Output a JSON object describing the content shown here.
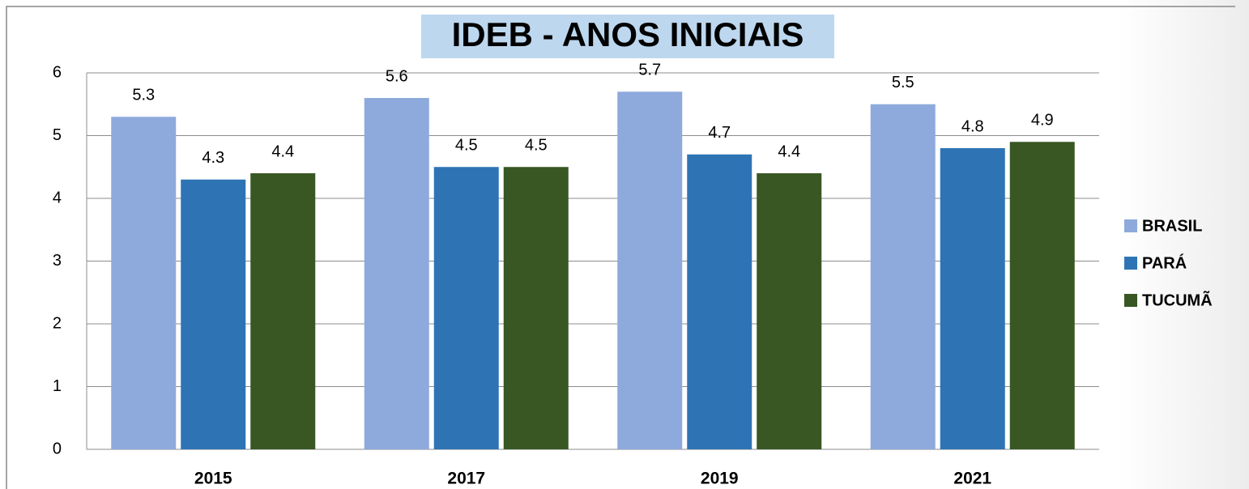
{
  "chart_data": {
    "type": "bar",
    "title": "IDEB - ANOS INICIAIS",
    "categories": [
      "2015",
      "2017",
      "2019",
      "2021"
    ],
    "series": [
      {
        "name": "BRASIL",
        "color": "#8eaadc",
        "values": [
          5.3,
          5.6,
          5.7,
          5.5
        ]
      },
      {
        "name": "PARÁ",
        "color": "#2e74b5",
        "values": [
          4.3,
          4.5,
          4.7,
          4.8
        ]
      },
      {
        "name": "TUCUMÃ",
        "color": "#385723",
        "values": [
          4.4,
          4.5,
          4.4,
          4.9
        ]
      }
    ],
    "ylim": [
      0,
      6
    ],
    "yticks": [
      0,
      1,
      2,
      3,
      4,
      5,
      6
    ],
    "grid": true,
    "legend": "right"
  }
}
